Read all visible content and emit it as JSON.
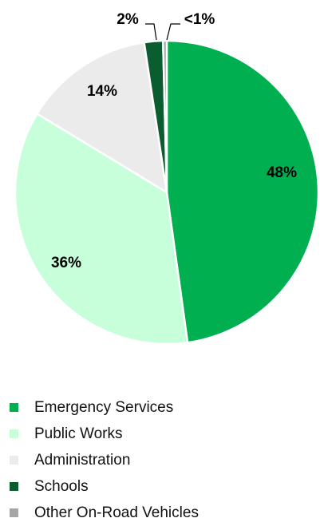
{
  "chart_data": {
    "type": "pie",
    "title": "",
    "slices": [
      {
        "name": "Emergency Services",
        "value": 48,
        "label": "48%",
        "color": "#00B050"
      },
      {
        "name": "Public Works",
        "value": 36,
        "label": "36%",
        "color": "#C6FFDA"
      },
      {
        "name": "Administration",
        "value": 14,
        "label": "14%",
        "color": "#EBEBEB"
      },
      {
        "name": "Schools",
        "value": 2,
        "label": "2%",
        "color": "#0B5C2E"
      },
      {
        "name": "Other On-Road Vehicles",
        "value": 0.4,
        "label": "<1%",
        "color": "#A6A6A6"
      }
    ],
    "start_angle_deg": 0,
    "direction": "clockwise",
    "legend_position": "bottom",
    "border_color": "#FFFFFF"
  }
}
